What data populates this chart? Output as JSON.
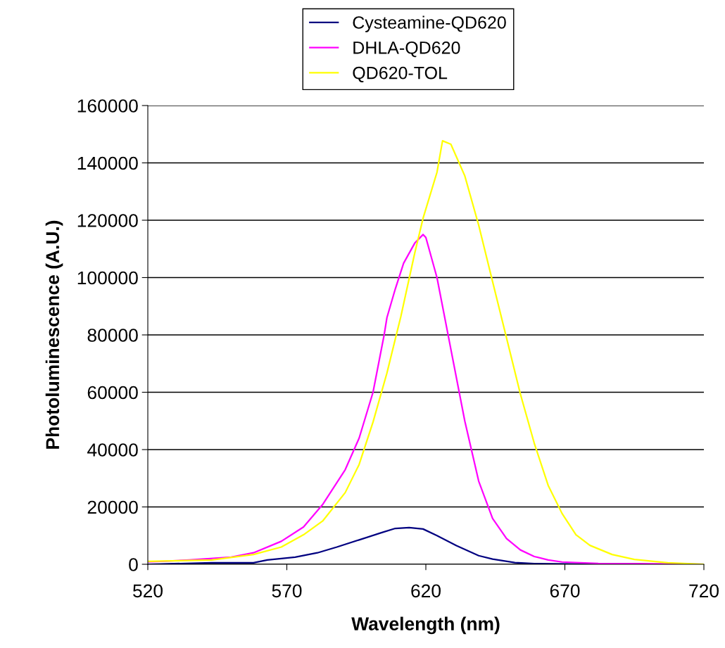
{
  "chart_data": {
    "type": "line",
    "xlabel": "Wavelength (nm)",
    "ylabel": "Photoluminescence (A.U.)",
    "xlim": [
      520,
      720
    ],
    "xticks": [
      520,
      570,
      620,
      670,
      720
    ],
    "ylim": [
      0,
      160000
    ],
    "yticks": [
      0,
      20000,
      40000,
      60000,
      80000,
      100000,
      120000,
      140000,
      160000
    ],
    "grid": "y",
    "legend": "top",
    "marker": "none",
    "line_style": "solid",
    "series": [
      {
        "name": "Cysteamine-QD620",
        "color": "#000080",
        "x": [
          520,
          543,
          558,
          563,
          573,
          581,
          588,
          596,
          604,
          609,
          614,
          619,
          624,
          631,
          639,
          644,
          652,
          659,
          687,
          720
        ],
        "values": [
          0,
          500,
          500,
          1500,
          2500,
          4000,
          6000,
          8500,
          11000,
          12500,
          12800,
          12300,
          10000,
          6500,
          3000,
          1800,
          600,
          200,
          0,
          0
        ]
      },
      {
        "name": "DHLA-QD620",
        "color": "#ff00ff",
        "x": [
          520,
          535,
          550,
          558,
          568,
          576,
          583,
          591,
          596,
          601,
          605,
          606,
          609,
          612,
          616,
          619,
          620,
          624,
          629,
          634,
          639,
          644,
          649,
          654,
          659,
          664,
          669,
          682,
          695,
          720
        ],
        "values": [
          800,
          1500,
          2500,
          4000,
          8000,
          13000,
          21000,
          33000,
          44000,
          60000,
          80000,
          86000,
          96000,
          105000,
          112000,
          115000,
          114000,
          100000,
          75000,
          50000,
          29000,
          16000,
          9000,
          5000,
          2700,
          1500,
          800,
          300,
          200,
          0
        ]
      },
      {
        "name": "QD620-TOL",
        "color": "#ffff00",
        "x": [
          520,
          543,
          558,
          568,
          576,
          583,
          591,
          596,
          601,
          606,
          611,
          616,
          619,
          624,
          626,
          629,
          634,
          639,
          644,
          649,
          654,
          659,
          664,
          669,
          674,
          679,
          687,
          695,
          707,
          720
        ],
        "values": [
          1000,
          1500,
          3400,
          6000,
          10300,
          15200,
          25000,
          34800,
          49600,
          66700,
          86400,
          108500,
          120700,
          136700,
          147700,
          146500,
          135500,
          118300,
          98600,
          79000,
          59400,
          42200,
          27500,
          17700,
          10300,
          6600,
          3400,
          1700,
          500,
          0
        ]
      }
    ]
  }
}
